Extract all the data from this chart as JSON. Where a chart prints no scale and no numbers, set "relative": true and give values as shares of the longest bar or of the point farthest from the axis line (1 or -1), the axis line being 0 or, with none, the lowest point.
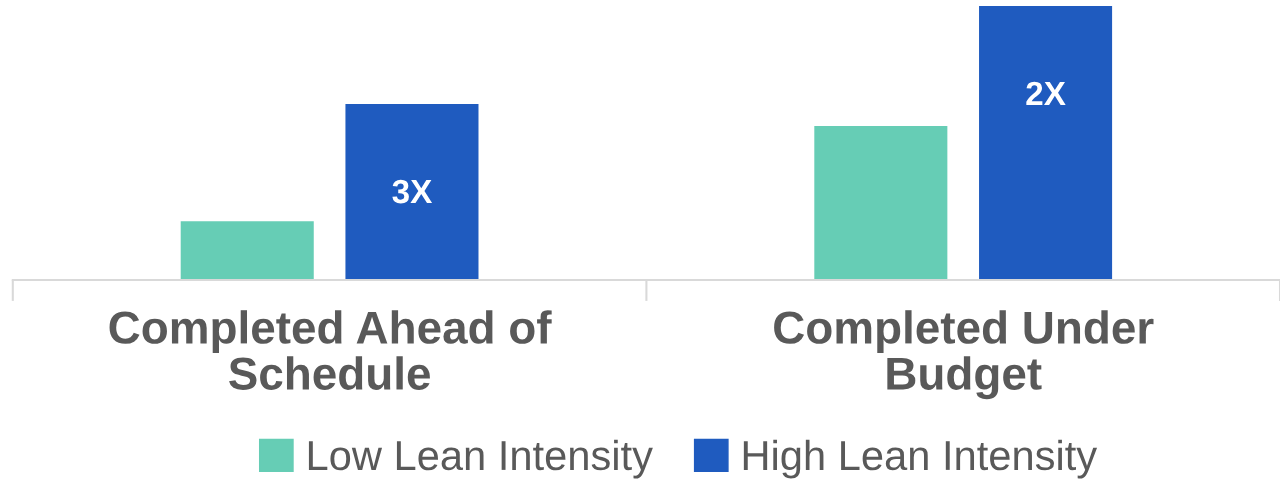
{
  "chart_data": {
    "type": "bar",
    "relative": true,
    "categories": [
      "Completed Ahead of\nSchedule",
      "Completed Under\nBudget"
    ],
    "series": [
      {
        "name": "Low Lean Intensity",
        "color": "#66cdb5",
        "values": [
          0.215,
          0.562
        ]
      },
      {
        "name": "High Lean Intensity",
        "color": "#1f5bbf",
        "values": [
          0.642,
          1
        ]
      }
    ],
    "annotations": [
      "3X",
      "2X"
    ],
    "legend": "bottom",
    "grid": false
  }
}
